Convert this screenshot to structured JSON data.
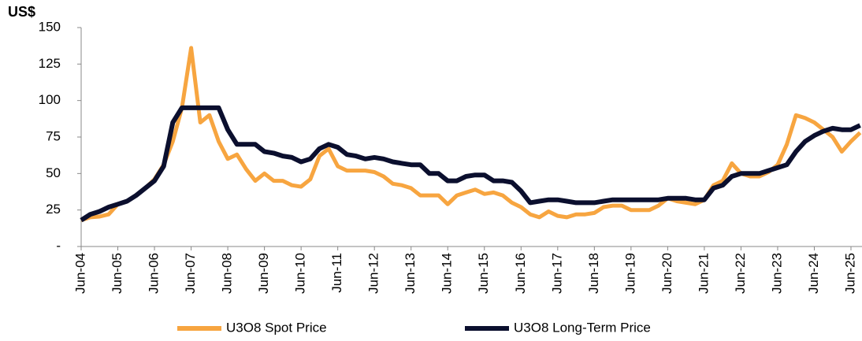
{
  "chart_data": {
    "type": "line",
    "y_axis_label": "US$",
    "categories": [
      "Jun-04",
      null,
      null,
      null,
      "Jun-05",
      null,
      null,
      null,
      "Jun-06",
      null,
      null,
      null,
      "Jun-07",
      null,
      null,
      null,
      "Jun-08",
      null,
      null,
      null,
      "Jun-09",
      null,
      null,
      null,
      "Jun-10",
      null,
      null,
      null,
      "Jun-11",
      null,
      null,
      null,
      "Jun-12",
      null,
      null,
      null,
      "Jun-13",
      null,
      null,
      null,
      "Jun-14",
      null,
      null,
      null,
      "Jun-15",
      null,
      null,
      null,
      "Jun-16",
      null,
      null,
      null,
      "Jun-17",
      null,
      null,
      null,
      "Jun-18",
      null,
      null,
      null,
      "Jun-19",
      null,
      null,
      null,
      "Jun-20",
      null,
      null,
      null,
      "Jun-21",
      null,
      null,
      null,
      "Jun-22",
      null,
      null,
      null,
      "Jun-23",
      null,
      null,
      null,
      "Jun-24",
      null,
      null,
      null,
      "Jun-25",
      null
    ],
    "series": [
      {
        "name": "U3O8 Spot Price",
        "color": "#f7a540",
        "values": [
          18,
          20,
          20.5,
          22,
          29,
          31,
          35,
          40,
          46,
          56,
          72,
          95,
          136,
          85,
          90,
          72,
          60,
          63,
          53,
          45,
          50,
          45,
          45,
          42,
          41,
          46,
          62,
          67,
          55,
          52,
          52,
          52,
          51,
          48,
          43,
          42,
          40,
          35,
          35,
          35,
          29,
          35,
          37,
          39,
          36,
          37,
          35,
          30,
          27,
          22,
          20,
          24,
          21,
          20,
          22,
          22,
          23,
          27,
          28,
          28,
          25,
          25,
          25,
          28,
          33,
          31,
          30,
          29,
          32,
          42,
          45,
          57,
          50,
          48,
          48,
          51,
          56,
          70,
          90,
          88,
          85,
          80,
          75,
          65,
          72,
          78
        ]
      },
      {
        "name": "U3O8 Long-Term Price",
        "color": "#0b0f2e",
        "values": [
          18,
          22,
          24,
          27,
          29,
          31,
          35,
          40,
          45,
          55,
          85,
          95,
          95,
          95,
          95,
          95,
          80,
          70,
          70,
          70,
          65,
          64,
          62,
          61,
          58,
          60,
          67,
          70,
          68,
          63,
          62,
          60,
          61,
          60,
          58,
          57,
          56,
          56,
          50,
          50,
          45,
          45,
          48,
          49,
          49,
          45,
          45,
          44,
          38,
          30,
          31,
          32,
          32,
          31,
          30,
          30,
          30,
          31,
          32,
          32,
          32,
          32,
          32,
          32,
          33,
          33,
          33,
          32,
          32,
          40,
          42,
          48,
          50,
          50,
          50,
          52,
          54,
          56,
          65,
          72,
          76,
          79,
          81,
          80,
          80,
          83
        ]
      }
    ],
    "ylim": [
      0,
      150
    ],
    "yticks": [
      {
        "value": 0,
        "label": "-"
      },
      25,
      50,
      75,
      100,
      125,
      150
    ],
    "legend": "bottom"
  }
}
